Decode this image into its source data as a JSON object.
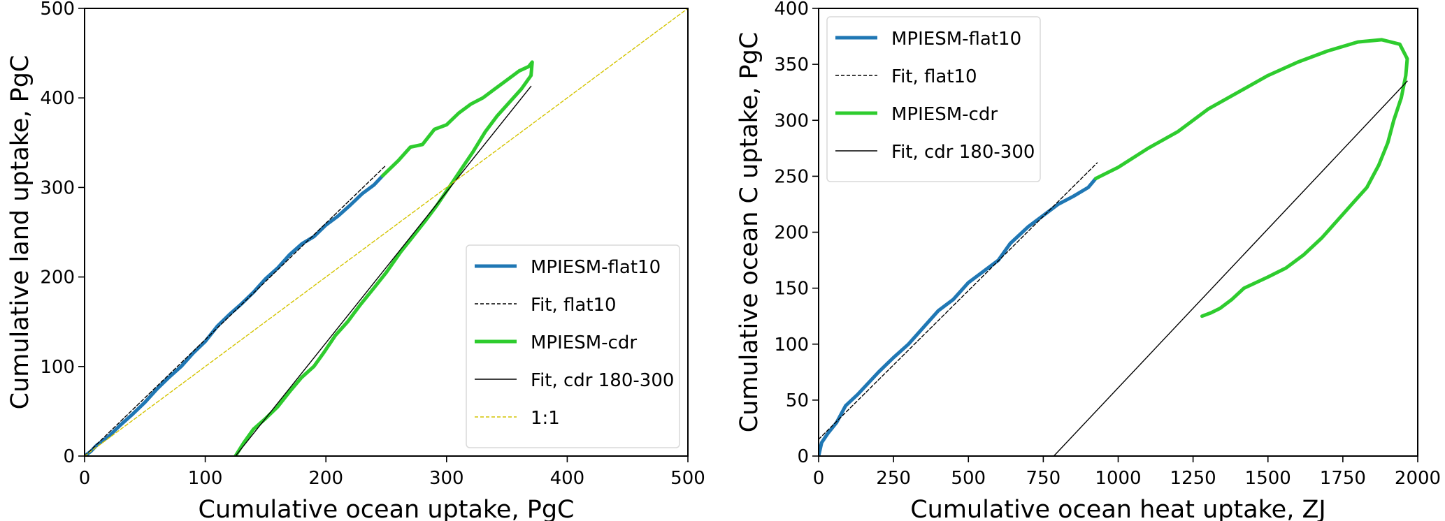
{
  "chart_data": [
    {
      "type": "line",
      "xlabel": "Cumulative ocean uptake, PgC",
      "ylabel": "Cumulative land uptake, PgC",
      "xlim": [
        0,
        500
      ],
      "ylim": [
        0,
        500
      ],
      "xticks": [
        0,
        100,
        200,
        300,
        400,
        500
      ],
      "yticks": [
        0,
        100,
        200,
        300,
        400,
        500
      ],
      "grid": false,
      "legend_position": "bottom-right",
      "series": [
        {
          "name": "MPIESM-flat10",
          "color": "#1f77b4",
          "style": "solid-thick",
          "points": [
            [
              0,
              0
            ],
            [
              5,
              5
            ],
            [
              10,
              12
            ],
            [
              20,
              22
            ],
            [
              30,
              35
            ],
            [
              40,
              47
            ],
            [
              50,
              60
            ],
            [
              60,
              75
            ],
            [
              70,
              88
            ],
            [
              80,
              100
            ],
            [
              90,
              115
            ],
            [
              100,
              128
            ],
            [
              110,
              145
            ],
            [
              120,
              158
            ],
            [
              130,
              170
            ],
            [
              140,
              183
            ],
            [
              150,
              198
            ],
            [
              160,
              210
            ],
            [
              170,
              225
            ],
            [
              180,
              237
            ],
            [
              190,
              245
            ],
            [
              200,
              258
            ],
            [
              210,
              268
            ],
            [
              220,
              280
            ],
            [
              230,
              293
            ],
            [
              240,
              303
            ],
            [
              247,
              313
            ]
          ]
        },
        {
          "name": "Fit, flat10",
          "color": "#000000",
          "style": "dashed",
          "points": [
            [
              0,
              0
            ],
            [
              250,
              325
            ]
          ]
        },
        {
          "name": "MPIESM-cdr",
          "color": "#2ecc2e",
          "style": "solid-thick",
          "points": [
            [
              247,
              313
            ],
            [
              260,
              330
            ],
            [
              270,
              345
            ],
            [
              280,
              348
            ],
            [
              290,
              365
            ],
            [
              300,
              370
            ],
            [
              310,
              383
            ],
            [
              320,
              393
            ],
            [
              330,
              400
            ],
            [
              340,
              410
            ],
            [
              350,
              420
            ],
            [
              360,
              430
            ],
            [
              368,
              435
            ],
            [
              371,
              440
            ],
            [
              370,
              425
            ],
            [
              362,
              410
            ],
            [
              352,
              395
            ],
            [
              342,
              380
            ],
            [
              332,
              362
            ],
            [
              322,
              340
            ],
            [
              312,
              320
            ],
            [
              302,
              300
            ],
            [
              292,
              280
            ],
            [
              282,
              262
            ],
            [
              272,
              245
            ],
            [
              262,
              228
            ],
            [
              250,
              205
            ],
            [
              240,
              188
            ],
            [
              228,
              168
            ],
            [
              218,
              150
            ],
            [
              208,
              135
            ],
            [
              198,
              115
            ],
            [
              190,
              100
            ],
            [
              180,
              88
            ],
            [
              170,
              72
            ],
            [
              160,
              55
            ],
            [
              150,
              42
            ],
            [
              140,
              30
            ],
            [
              132,
              15
            ],
            [
              125,
              0
            ]
          ]
        },
        {
          "name": "Fit, cdr 180-300",
          "color": "#000000",
          "style": "solid-thin",
          "points": [
            [
              125,
              0
            ],
            [
              370,
              413
            ]
          ]
        },
        {
          "name": "1:1",
          "color": "#d4c400",
          "style": "dashed",
          "points": [
            [
              0,
              0
            ],
            [
              500,
              500
            ]
          ]
        }
      ]
    },
    {
      "type": "line",
      "xlabel": "Cumulative ocean heat uptake, ZJ",
      "ylabel": "Cumulative ocean C uptake, PgC",
      "xlim": [
        0,
        2000
      ],
      "ylim": [
        0,
        400
      ],
      "xticks": [
        0,
        250,
        500,
        750,
        1000,
        1250,
        1500,
        1750,
        2000
      ],
      "yticks": [
        0,
        50,
        100,
        150,
        200,
        250,
        300,
        350,
        400
      ],
      "grid": false,
      "legend_position": "top-left",
      "series": [
        {
          "name": "MPIESM-flat10",
          "color": "#1f77b4",
          "style": "solid-thick",
          "points": [
            [
              0,
              0
            ],
            [
              10,
              12
            ],
            [
              30,
              20
            ],
            [
              60,
              30
            ],
            [
              90,
              45
            ],
            [
              130,
              55
            ],
            [
              200,
              75
            ],
            [
              250,
              88
            ],
            [
              300,
              100
            ],
            [
              350,
              115
            ],
            [
              400,
              130
            ],
            [
              450,
              140
            ],
            [
              500,
              155
            ],
            [
              550,
              165
            ],
            [
              600,
              175
            ],
            [
              640,
              190
            ],
            [
              700,
              205
            ],
            [
              750,
              215
            ],
            [
              800,
              225
            ],
            [
              850,
              232
            ],
            [
              900,
              240
            ],
            [
              925,
              248
            ]
          ]
        },
        {
          "name": "Fit, flat10",
          "color": "#000000",
          "style": "dashed",
          "points": [
            [
              0,
              15
            ],
            [
              930,
              262
            ]
          ]
        },
        {
          "name": "MPIESM-cdr",
          "color": "#2ecc2e",
          "style": "solid-thick",
          "points": [
            [
              925,
              248
            ],
            [
              1000,
              258
            ],
            [
              1100,
              275
            ],
            [
              1200,
              290
            ],
            [
              1300,
              310
            ],
            [
              1400,
              325
            ],
            [
              1500,
              340
            ],
            [
              1600,
              352
            ],
            [
              1700,
              362
            ],
            [
              1800,
              370
            ],
            [
              1880,
              372
            ],
            [
              1940,
              368
            ],
            [
              1965,
              355
            ],
            [
              1960,
              340
            ],
            [
              1945,
              320
            ],
            [
              1920,
              300
            ],
            [
              1900,
              280
            ],
            [
              1870,
              260
            ],
            [
              1830,
              240
            ],
            [
              1780,
              225
            ],
            [
              1730,
              210
            ],
            [
              1680,
              195
            ],
            [
              1620,
              180
            ],
            [
              1560,
              168
            ],
            [
              1500,
              160
            ],
            [
              1420,
              150
            ],
            [
              1380,
              140
            ],
            [
              1340,
              132
            ],
            [
              1310,
              128
            ],
            [
              1280,
              125
            ]
          ]
        },
        {
          "name": "Fit, cdr 180-300",
          "color": "#000000",
          "style": "solid-thin",
          "points": [
            [
              785,
              0
            ],
            [
              1965,
              335
            ]
          ]
        }
      ]
    }
  ]
}
